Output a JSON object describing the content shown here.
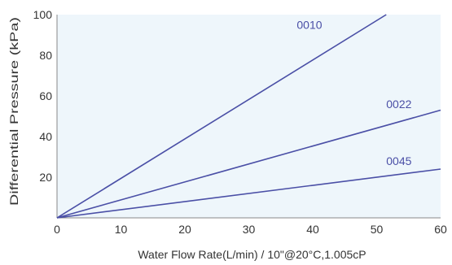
{
  "chart_data": {
    "type": "line",
    "title": "",
    "xlabel": "Water Flow Rate(L/min) / 10\"@20°C,1.005cP",
    "ylabel": "Differential Pressure (kPa)",
    "xlim": [
      0,
      60
    ],
    "ylim": [
      0,
      100
    ],
    "x_ticks": [
      0,
      10,
      20,
      30,
      40,
      50,
      60
    ],
    "y_ticks": [
      20,
      40,
      60,
      80,
      100
    ],
    "x_tick_labels": [
      "0",
      "10",
      "20",
      "30",
      "40",
      "50",
      "60"
    ],
    "y_tick_labels": [
      "20",
      "40",
      "60",
      "80",
      "100"
    ],
    "grid": false,
    "background_color": "#eef6fb",
    "axis_color": "#888888",
    "series": [
      {
        "name": "0010",
        "color": "#4a4fa6",
        "points": [
          [
            0,
            0
          ],
          [
            51.5,
            100
          ]
        ],
        "label_at": [
          37.5,
          95
        ]
      },
      {
        "name": "0022",
        "color": "#4a4fa6",
        "points": [
          [
            0,
            0
          ],
          [
            60,
            53
          ]
        ],
        "label_at": [
          51.5,
          56
        ]
      },
      {
        "name": "0045",
        "color": "#4a4fa6",
        "points": [
          [
            0,
            0
          ],
          [
            60,
            24
          ]
        ],
        "label_at": [
          51.5,
          28
        ]
      }
    ]
  }
}
